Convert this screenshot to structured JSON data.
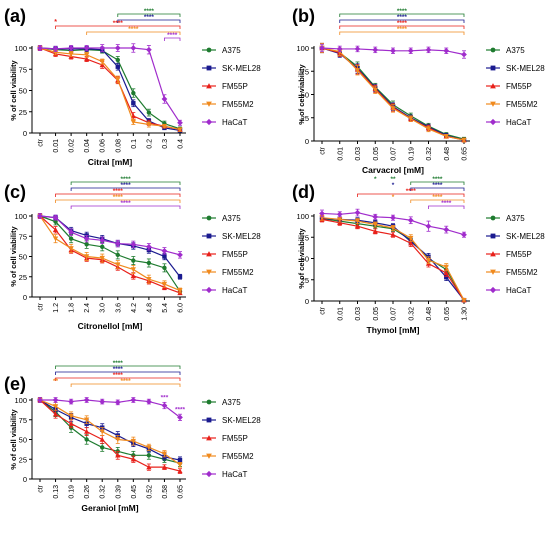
{
  "colors": {
    "A375": "#1e7b2f",
    "SK-MEL28": "#1a1a8f",
    "FM55P": "#e8201a",
    "FM55M2": "#f08a1e",
    "HaCaT": "#a02ccc",
    "axis": "#000000"
  },
  "legend_entries": [
    "A375",
    "SK-MEL28",
    "FM55P",
    "FM55M2",
    "HaCaT"
  ],
  "chart_data": [
    {
      "panel_label": "(a)",
      "type": "line",
      "xlabel": "Citral [mM]",
      "ylabel": "% of cell viability",
      "categories": [
        "ctr",
        "0.01",
        "0.02",
        "0.04",
        "0.06",
        "0.08",
        "0.1",
        "0.2",
        "0.3",
        "0.4"
      ],
      "ylim": [
        0,
        100
      ],
      "yticks": [
        0,
        25,
        50,
        75,
        100
      ],
      "legend_position": "right",
      "series": [
        {
          "name": "A375",
          "values": [
            100,
            98,
            97,
            98,
            97,
            86,
            47,
            24,
            11,
            5
          ],
          "errors": [
            3,
            3,
            3,
            3,
            3,
            4,
            5,
            4,
            3,
            2
          ]
        },
        {
          "name": "SK-MEL28",
          "values": [
            100,
            99,
            99,
            99,
            98,
            78,
            35,
            14,
            6,
            3
          ],
          "errors": [
            3,
            3,
            3,
            3,
            3,
            4,
            4,
            3,
            2,
            2
          ]
        },
        {
          "name": "FM55P",
          "values": [
            100,
            93,
            90,
            87,
            80,
            62,
            20,
            12,
            8,
            4
          ],
          "errors": [
            3,
            3,
            3,
            3,
            4,
            4,
            4,
            3,
            2,
            2
          ]
        },
        {
          "name": "FM55M2",
          "values": [
            100,
            95,
            93,
            92,
            84,
            63,
            13,
            10,
            8,
            4
          ],
          "errors": [
            3,
            3,
            3,
            3,
            3,
            4,
            3,
            3,
            2,
            2
          ]
        },
        {
          "name": "HaCaT",
          "values": [
            100,
            99,
            100,
            100,
            100,
            100,
            100,
            98,
            40,
            12
          ],
          "errors": [
            3,
            3,
            3,
            3,
            4,
            4,
            5,
            5,
            5,
            3
          ]
        }
      ],
      "significance": [
        {
          "series": "A375",
          "from": "0.08",
          "to": "0.4",
          "stars": "****"
        },
        {
          "series": "SK-MEL28",
          "from": "0.08",
          "to": "0.4",
          "stars": "****"
        },
        {
          "series": "FM55P",
          "from": "0.01",
          "to": "0.4",
          "stars": "****",
          "extra_star_at": "0.01"
        },
        {
          "series": "FM55M2",
          "from": "0.04",
          "to": "0.4",
          "stars": "****"
        },
        {
          "series": "HaCaT",
          "from": "0.3",
          "to": "0.4",
          "stars": "****"
        }
      ]
    },
    {
      "panel_label": "(b)",
      "type": "line",
      "xlabel": "Carvacrol [mM]",
      "ylabel": "% of cell viability",
      "categories": [
        "ctr",
        "0.01",
        "0.03",
        "0.05",
        "0.07",
        "0.19",
        "0.32",
        "0.48",
        "0.65"
      ],
      "ylim": [
        0,
        100
      ],
      "yticks": [
        0,
        25,
        50,
        75,
        100
      ],
      "legend_position": "right",
      "series": [
        {
          "name": "A375",
          "values": [
            100,
            95,
            80,
            58,
            39,
            27,
            16,
            7,
            2
          ],
          "errors": [
            5,
            4,
            5,
            4,
            4,
            3,
            3,
            2,
            2
          ]
        },
        {
          "name": "SK-MEL28",
          "values": [
            100,
            94,
            78,
            57,
            37,
            25,
            15,
            6,
            1
          ],
          "errors": [
            5,
            4,
            5,
            4,
            4,
            3,
            3,
            2,
            2
          ]
        },
        {
          "name": "FM55P",
          "values": [
            100,
            95,
            77,
            56,
            36,
            24,
            14,
            5,
            1
          ],
          "errors": [
            5,
            4,
            5,
            4,
            4,
            3,
            3,
            2,
            2
          ]
        },
        {
          "name": "FM55M2",
          "values": [
            100,
            96,
            76,
            55,
            35,
            24,
            13,
            5,
            1
          ],
          "errors": [
            5,
            4,
            5,
            4,
            4,
            3,
            3,
            2,
            2
          ]
        },
        {
          "name": "HaCaT",
          "values": [
            100,
            99,
            99,
            98,
            97,
            97,
            98,
            97,
            93
          ],
          "errors": [
            4,
            3,
            3,
            3,
            3,
            3,
            3,
            3,
            4
          ]
        }
      ],
      "significance": [
        {
          "series": "A375",
          "from": "0.01",
          "to": "0.65",
          "stars": "****"
        },
        {
          "series": "SK-MEL28",
          "from": "0.01",
          "to": "0.65",
          "stars": "****"
        },
        {
          "series": "FM55P",
          "from": "0.01",
          "to": "0.65",
          "stars": "****"
        },
        {
          "series": "FM55M2",
          "from": "0.01",
          "to": "0.65",
          "stars": "****"
        }
      ]
    },
    {
      "panel_label": "(c)",
      "type": "line",
      "xlabel": "Citronellol [mM]",
      "ylabel": "% of cell viability",
      "categories": [
        "ctr",
        "1.2",
        "1.8",
        "2.4",
        "3.0",
        "3.6",
        "4.2",
        "4.8",
        "5.4",
        "6.0"
      ],
      "ylim": [
        0,
        100
      ],
      "yticks": [
        0,
        25,
        50,
        75,
        100
      ],
      "legend_position": "right",
      "series": [
        {
          "name": "A375",
          "values": [
            100,
            93,
            72,
            65,
            62,
            52,
            45,
            42,
            36,
            7
          ],
          "errors": [
            3,
            4,
            5,
            5,
            5,
            5,
            5,
            5,
            5,
            3
          ]
        },
        {
          "name": "SK-MEL28",
          "values": [
            100,
            98,
            82,
            76,
            72,
            66,
            63,
            58,
            50,
            25
          ],
          "errors": [
            3,
            3,
            4,
            4,
            4,
            4,
            4,
            4,
            4,
            3
          ]
        },
        {
          "name": "FM55P",
          "values": [
            100,
            83,
            58,
            48,
            46,
            37,
            26,
            20,
            12,
            5
          ],
          "errors": [
            3,
            4,
            4,
            4,
            4,
            4,
            4,
            4,
            3,
            2
          ]
        },
        {
          "name": "FM55M2",
          "values": [
            100,
            72,
            60,
            50,
            48,
            40,
            34,
            22,
            16,
            8
          ],
          "errors": [
            3,
            5,
            5,
            5,
            5,
            5,
            5,
            5,
            4,
            3
          ]
        },
        {
          "name": "HaCaT",
          "values": [
            100,
            98,
            80,
            72,
            70,
            66,
            65,
            62,
            57,
            52
          ],
          "errors": [
            3,
            3,
            4,
            4,
            4,
            4,
            4,
            4,
            4,
            4
          ]
        }
      ],
      "significance": [
        {
          "series": "A375",
          "from": "1.8",
          "to": "6.0",
          "stars": "****"
        },
        {
          "series": "SK-MEL28",
          "from": "1.8",
          "to": "6.0",
          "stars": "****"
        },
        {
          "series": "FM55P",
          "from": "1.2",
          "to": "6.0",
          "stars": "****"
        },
        {
          "series": "FM55M2",
          "from": "1.2",
          "to": "6.0",
          "stars": "****"
        },
        {
          "series": "HaCaT",
          "from": "1.8",
          "to": "6.0",
          "stars": "****"
        }
      ]
    },
    {
      "panel_label": "(d)",
      "type": "line",
      "xlabel": "Thymol [mM]",
      "ylabel": "% of cell viability",
      "categories": [
        "ctr",
        "0.01",
        "0.03",
        "0.05",
        "0.07",
        "0.32",
        "0.48",
        "0.65",
        "1.30"
      ],
      "ylim": [
        0,
        100
      ],
      "yticks": [
        0,
        25,
        50,
        75,
        100
      ],
      "legend_position": "right",
      "series": [
        {
          "name": "A375",
          "values": [
            97,
            94,
            91,
            88,
            85,
            72,
            50,
            37,
            1
          ],
          "errors": [
            3,
            3,
            3,
            3,
            3,
            4,
            4,
            4,
            1
          ]
        },
        {
          "name": "SK-MEL28",
          "values": [
            97,
            96,
            95,
            92,
            88,
            70,
            52,
            28,
            1
          ],
          "errors": [
            3,
            3,
            3,
            3,
            3,
            4,
            4,
            4,
            1
          ]
        },
        {
          "name": "FM55P",
          "values": [
            96,
            92,
            88,
            82,
            78,
            68,
            44,
            33,
            1
          ],
          "errors": [
            3,
            3,
            3,
            3,
            3,
            4,
            4,
            4,
            1
          ]
        },
        {
          "name": "FM55M2",
          "values": [
            98,
            96,
            94,
            90,
            86,
            74,
            48,
            40,
            1
          ],
          "errors": [
            3,
            3,
            3,
            3,
            3,
            4,
            4,
            4,
            1
          ]
        },
        {
          "name": "HaCaT",
          "values": [
            103,
            102,
            104,
            99,
            98,
            95,
            88,
            84,
            78
          ],
          "errors": [
            4,
            3,
            4,
            3,
            3,
            4,
            6,
            4,
            3
          ]
        }
      ],
      "significance": [
        {
          "series": "A375",
          "from": "0.32",
          "to": "1.30",
          "stars": "****",
          "marks": [
            {
              "at": "0.05",
              "stars": "*"
            },
            {
              "at": "0.07",
              "stars": "**"
            }
          ]
        },
        {
          "series": "SK-MEL28",
          "from": "0.32",
          "to": "1.30",
          "stars": "****",
          "marks": [
            {
              "at": "0.07",
              "stars": "*"
            }
          ]
        },
        {
          "series": "FM55P",
          "from": "0.03",
          "to": "1.30",
          "stars": "****"
        },
        {
          "series": "FM55M2",
          "from": "0.32",
          "to": "1.30",
          "stars": "****",
          "marks": [
            {
              "at": "0.07",
              "stars": "*"
            }
          ]
        },
        {
          "series": "HaCaT",
          "from": "0.48",
          "to": "1.30",
          "stars": "****"
        }
      ]
    },
    {
      "panel_label": "(e)",
      "type": "line",
      "xlabel": "Geraniol [mM]",
      "ylabel": "% of cell viability",
      "categories": [
        "ctr",
        "0.13",
        "0.19",
        "0.26",
        "0.32",
        "0.39",
        "0.45",
        "0.52",
        "0.58",
        "0.65"
      ],
      "ylim": [
        0,
        100
      ],
      "yticks": [
        0,
        25,
        50,
        75,
        100
      ],
      "legend_position": "right",
      "series": [
        {
          "name": "A375",
          "values": [
            100,
            85,
            65,
            50,
            40,
            35,
            30,
            30,
            25,
            20
          ],
          "errors": [
            3,
            6,
            6,
            6,
            5,
            5,
            5,
            5,
            4,
            4
          ]
        },
        {
          "name": "SK-MEL28",
          "values": [
            100,
            88,
            78,
            70,
            65,
            55,
            45,
            38,
            28,
            24
          ],
          "errors": [
            3,
            5,
            5,
            5,
            5,
            5,
            4,
            4,
            4,
            4
          ]
        },
        {
          "name": "FM55P",
          "values": [
            100,
            82,
            70,
            60,
            50,
            30,
            25,
            15,
            15,
            10
          ],
          "errors": [
            3,
            5,
            5,
            5,
            5,
            5,
            4,
            4,
            3,
            3
          ]
        },
        {
          "name": "FM55M2",
          "values": [
            100,
            92,
            80,
            75,
            60,
            50,
            48,
            40,
            32,
            18
          ],
          "errors": [
            3,
            5,
            5,
            5,
            5,
            5,
            5,
            4,
            4,
            3
          ]
        },
        {
          "name": "HaCaT",
          "values": [
            100,
            100,
            98,
            100,
            98,
            97,
            100,
            98,
            93,
            78
          ],
          "errors": [
            3,
            3,
            3,
            3,
            3,
            3,
            3,
            3,
            4,
            4
          ]
        }
      ],
      "significance": [
        {
          "series": "A375",
          "from": "0.13",
          "to": "0.65",
          "stars": "****"
        },
        {
          "series": "SK-MEL28",
          "from": "0.13",
          "to": "0.65",
          "stars": "****"
        },
        {
          "series": "FM55P",
          "from": "0.13",
          "to": "0.65",
          "stars": "****"
        },
        {
          "series": "FM55M2",
          "from": "0.19",
          "to": "0.65",
          "stars": "****",
          "marks": [
            {
              "at": "0.13",
              "stars": "**"
            }
          ]
        },
        {
          "series": "HaCaT",
          "from": null,
          "to": null,
          "marks": [
            {
              "at": "0.58",
              "stars": "***"
            },
            {
              "at": "0.65",
              "stars": "****"
            }
          ]
        }
      ]
    }
  ]
}
